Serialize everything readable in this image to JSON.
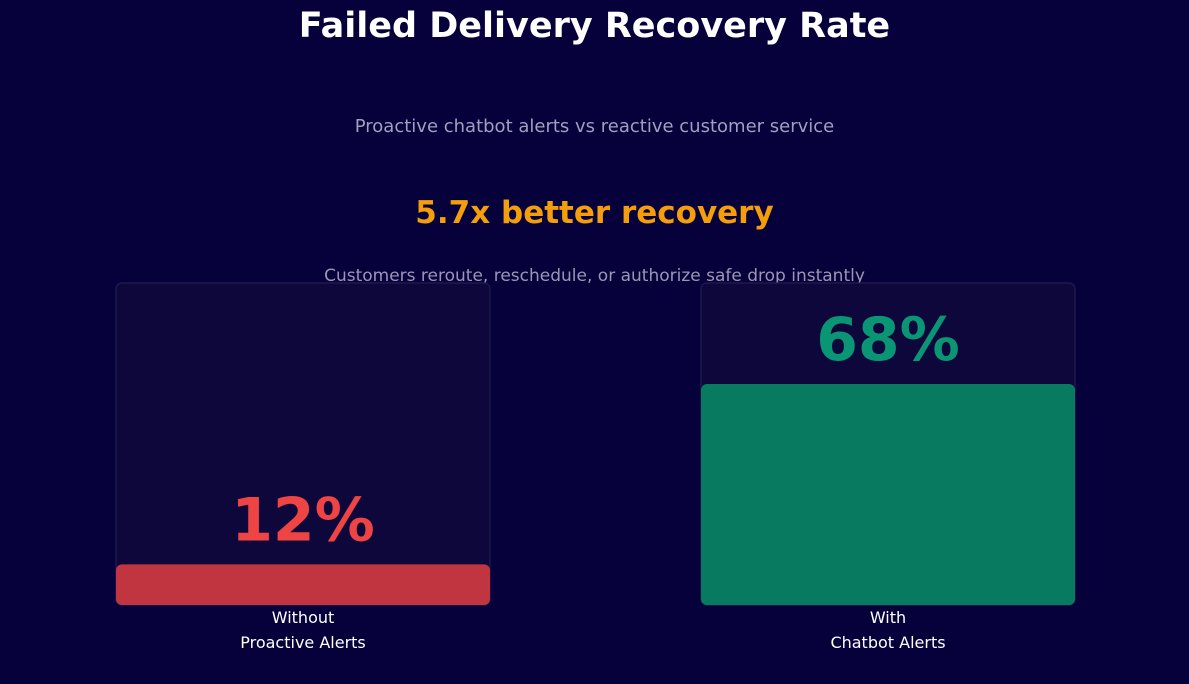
{
  "title": "Failed Delivery Recovery Rate",
  "subtitle": "Proactive chatbot alerts vs reactive customer service",
  "headline": "5.7x better recovery",
  "note": "Customers reroute, reschedule, or authorize safe drop instantly",
  "colors": {
    "background": "#06003b",
    "headline": "#f59e0b",
    "track": "#0d073c",
    "track_border": "#231d52",
    "without": "#c0353f",
    "without_label": "#ef4444",
    "with": "#077a60",
    "with_label": "#0a9574",
    "category_text": "#ffffff"
  },
  "chart_data": {
    "type": "bar",
    "categories": [
      "Without\nProactive Alerts",
      "With\nChatbot Alerts"
    ],
    "values": [
      12,
      68
    ],
    "value_labels": [
      "12%",
      "68%"
    ],
    "ylim": [
      0,
      100
    ],
    "unit": "%"
  }
}
